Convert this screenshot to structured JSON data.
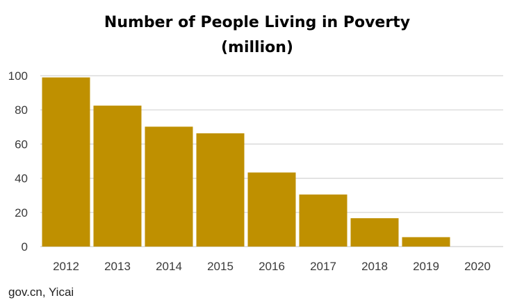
{
  "chart_data": {
    "type": "bar",
    "title_lines": [
      "Number of People Living in Poverty",
      "(million)"
    ],
    "categories": [
      "2012",
      "2013",
      "2014",
      "2015",
      "2016",
      "2017",
      "2018",
      "2019",
      "2020"
    ],
    "values": [
      98.99,
      82.49,
      70.17,
      66.3,
      43.35,
      30.46,
      16.6,
      5.51,
      0
    ],
    "xlabel": "",
    "ylabel": "",
    "ylim": [
      0,
      100
    ],
    "yticks": [
      0,
      20,
      40,
      60,
      80,
      100
    ],
    "yticks_labels": [
      "0",
      "20",
      "40",
      "60",
      "80",
      "100"
    ],
    "grid": true,
    "legend": "none",
    "bar_color": "#bf9000",
    "source": "gov.cn, Yicai"
  }
}
